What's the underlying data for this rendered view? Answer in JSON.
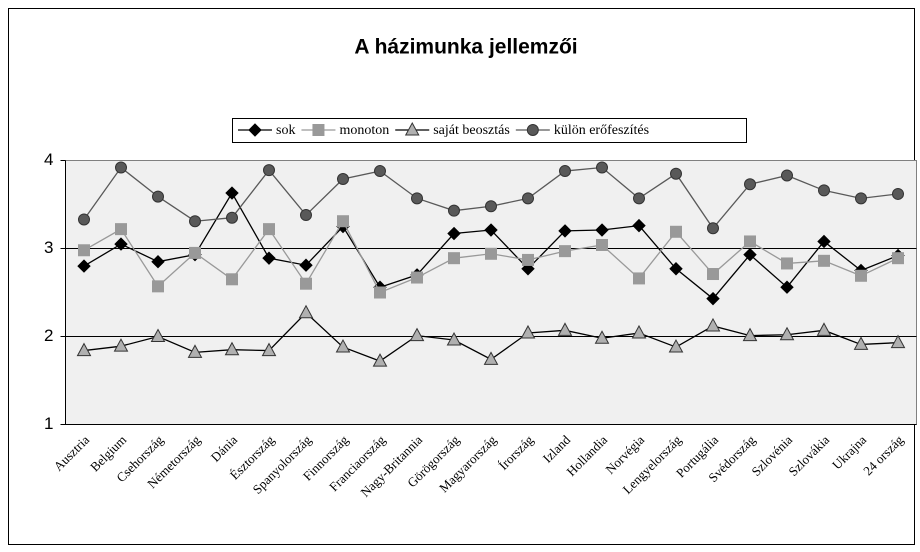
{
  "chart_data": {
    "type": "line",
    "title": "A házimunka jellemzői",
    "categories": [
      "Ausztria",
      "Belgium",
      "Csehország",
      "Németország",
      "Dánia",
      "Észtország",
      "Spanyolország",
      "Finnország",
      "Franciaország",
      "Nagy-Britannia",
      "Görögország",
      "Magyarország",
      "Írország",
      "Izland",
      "Hollandia",
      "Norvégia",
      "Lengyelország",
      "Portugália",
      "Svédország",
      "Szlovénia",
      "Szlovákia",
      "Ukrajna",
      "24 ország"
    ],
    "series": [
      {
        "name": "sok",
        "color": "#000000",
        "marker": "diamond",
        "values": [
          2.8,
          3.05,
          2.85,
          2.93,
          3.63,
          2.89,
          2.81,
          3.25,
          2.56,
          2.7,
          3.17,
          3.21,
          2.77,
          3.2,
          3.21,
          3.26,
          2.77,
          2.43,
          2.93,
          2.56,
          3.08,
          2.75,
          2.92
        ]
      },
      {
        "name": "monoton",
        "color": "#999999",
        "marker": "square",
        "values": [
          2.98,
          3.22,
          2.57,
          2.95,
          2.65,
          3.22,
          2.6,
          3.31,
          2.5,
          2.67,
          2.89,
          2.94,
          2.87,
          2.97,
          3.04,
          2.66,
          3.19,
          2.71,
          3.08,
          2.83,
          2.86,
          2.69,
          2.89
        ]
      },
      {
        "name": "saját beosztás",
        "color": "#b0b0b0",
        "marker": "triangle",
        "values": [
          1.84,
          1.89,
          2.0,
          1.82,
          1.85,
          1.84,
          2.27,
          1.88,
          1.72,
          2.01,
          1.96,
          1.74,
          2.04,
          2.07,
          1.98,
          2.04,
          1.88,
          2.12,
          2.01,
          2.02,
          2.07,
          1.91,
          1.93
        ]
      },
      {
        "name": "külön erőfeszítés",
        "color": "#595959",
        "marker": "circle",
        "values": [
          3.33,
          3.92,
          3.59,
          3.31,
          3.35,
          3.89,
          3.38,
          3.79,
          3.88,
          3.57,
          3.43,
          3.48,
          3.57,
          3.88,
          3.92,
          3.57,
          3.85,
          3.23,
          3.73,
          3.83,
          3.66,
          3.57,
          3.62
        ]
      }
    ],
    "ylim": [
      1,
      4
    ],
    "yticks": [
      1,
      2,
      3,
      4
    ],
    "grid": true,
    "legend": "top"
  }
}
